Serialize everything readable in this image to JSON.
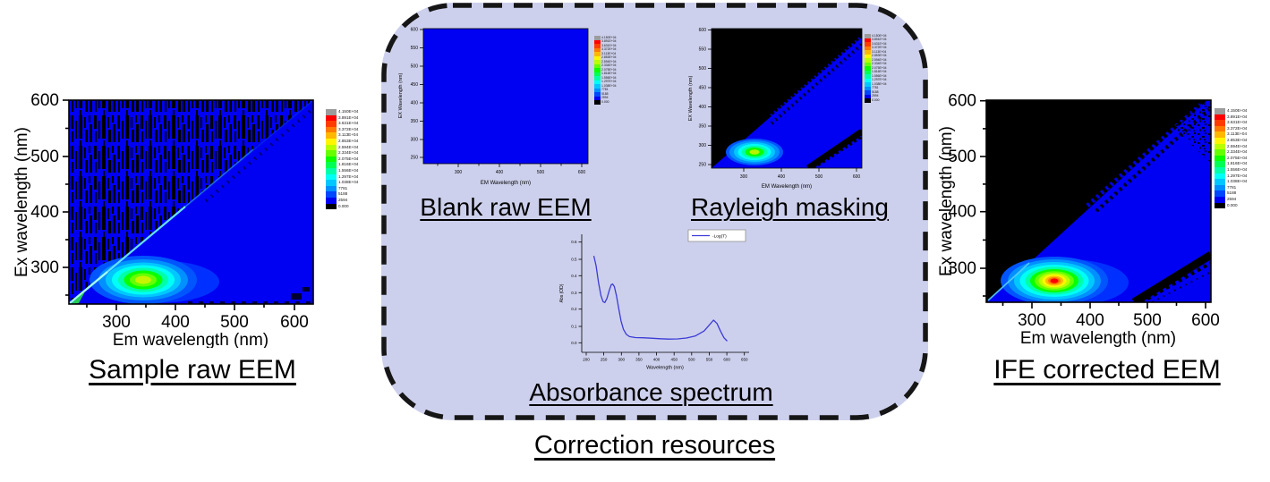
{
  "colors": {
    "box_bg": "#cdd0ec",
    "plot_blue": "#0000f2",
    "mask_black": "#000000",
    "curve_blue": "#3b3bd6"
  },
  "box_label": "Correction resources",
  "panels": {
    "sample": {
      "title": "Sample raw EEM",
      "xlabel": "Em wavelength (nm)",
      "ylabel": "Ex wavelength (nm)",
      "xticks": [
        "300",
        "400",
        "500",
        "600"
      ],
      "yticks": [
        "600",
        "500",
        "400",
        "300"
      ]
    },
    "blank": {
      "title": "Blank raw EEM",
      "xlabel": "EM Wavelength (nm)",
      "ylabel": "EX Wavelength (nm)",
      "xticks": [
        "300",
        "400",
        "500",
        "600"
      ],
      "yticks": [
        "600",
        "550",
        "500",
        "450",
        "400",
        "350",
        "300",
        "250"
      ]
    },
    "rayleigh": {
      "title": "Rayleigh masking",
      "xlabel": "EM Wavelength (nm)",
      "ylabel": "EX Wavelength (nm)",
      "xticks": [
        "300",
        "400",
        "500",
        "600"
      ],
      "yticks": [
        "600",
        "550",
        "500",
        "450",
        "400",
        "350",
        "300",
        "250"
      ]
    },
    "absorbance": {
      "title": "Absorbance spectrum",
      "xlabel": "Wavelength (nm)",
      "ylabel": "Abs (OD)",
      "legend": "-Log(T)",
      "xticks": [
        "200",
        "250",
        "300",
        "350",
        "400",
        "450",
        "500",
        "550",
        "600",
        "650"
      ],
      "yticks": [
        "0.6",
        "0.5",
        "0.4",
        "0.3",
        "0.2",
        "0.1",
        "0.0"
      ]
    },
    "ife": {
      "title": "IFE corrected EEM",
      "xlabel": "Em wavelength (nm)",
      "ylabel": "Ex wavelength (nm)",
      "xticks": [
        "300",
        "400",
        "500",
        "600"
      ],
      "yticks": [
        "600",
        "500",
        "400",
        "300"
      ]
    }
  },
  "colorbar": {
    "levels": [
      {
        "color": "#9c9c9c",
        "label": "4.150E+04"
      },
      {
        "color": "#ff0000",
        "label": "3.891E+04"
      },
      {
        "color": "#ff3c00",
        "label": "3.631E+04"
      },
      {
        "color": "#ff7a00",
        "label": "3.372E+04"
      },
      {
        "color": "#ffb800",
        "label": "3.113E+04"
      },
      {
        "color": "#fff600",
        "label": "2.853E+04"
      },
      {
        "color": "#b8ff00",
        "label": "2.594E+04"
      },
      {
        "color": "#66ff00",
        "label": "2.334E+04"
      },
      {
        "color": "#0aff00",
        "label": "2.075E+04"
      },
      {
        "color": "#00ff55",
        "label": "1.816E+04"
      },
      {
        "color": "#00ffa8",
        "label": "1.556E+04"
      },
      {
        "color": "#00fff6",
        "label": "1.297E+04"
      },
      {
        "color": "#00c8ff",
        "label": "1.038E+04"
      },
      {
        "color": "#0090ff",
        "label": "7781"
      },
      {
        "color": "#0048ff",
        "label": "5188"
      },
      {
        "color": "#0000f2",
        "label": "2594"
      },
      {
        "color": "#000000",
        "label": "0.000"
      }
    ]
  },
  "chart_data": [
    {
      "id": "sample_raw_eem",
      "type": "heatmap",
      "title": "Sample raw EEM",
      "xlabel": "Em wavelength (nm)",
      "ylabel": "Ex wavelength (nm)",
      "x_range_nm": [
        215,
        615
      ],
      "y_range_nm": [
        230,
        600
      ],
      "intensity_levels": [
        41500,
        38910,
        36310,
        33720,
        31130,
        28530,
        25940,
        23340,
        20750,
        18160,
        15560,
        12970,
        10380,
        7781,
        5188,
        2594,
        0
      ],
      "peak": {
        "em_nm": 335,
        "ex_nm": 272,
        "intensity": 26000,
        "appearance": "yellow-green core with green/cyan/blue rings"
      },
      "features": [
        "random black detector-noise streaks above the Rayleigh diagonal (region Em < Ex)",
        "bright cyan first-order Rayleigh scatter line along Em = Ex, strongest near 230-330 nm",
        "uniform blue baseline (~2594 counts) below the diagonal"
      ]
    },
    {
      "id": "blank_raw_eem",
      "type": "heatmap",
      "title": "Blank raw EEM",
      "xlabel": "EM Wavelength (nm)",
      "ylabel": "EX Wavelength (nm)",
      "x_range_nm": [
        215,
        615
      ],
      "y_range_nm": [
        250,
        600
      ],
      "intensity_levels": [
        41500,
        38910,
        36310,
        33720,
        31130,
        28530,
        25940,
        23340,
        20750,
        18160,
        15560,
        12970,
        10380,
        7781,
        5188,
        2594,
        0
      ],
      "uniform_value": 2594,
      "features": [
        "entire map uniform blue (low constant background, no fluorescence)"
      ]
    },
    {
      "id": "rayleigh_masking",
      "type": "heatmap",
      "title": "Rayleigh masking",
      "xlabel": "EM Wavelength (nm)",
      "ylabel": "EX Wavelength (nm)",
      "x_range_nm": [
        215,
        615
      ],
      "y_range_nm": [
        250,
        600
      ],
      "intensity_levels": [
        41500,
        38910,
        36310,
        33720,
        31130,
        28530,
        25940,
        23340,
        20750,
        18160,
        15560,
        12970,
        10380,
        7781,
        5188,
        2594,
        0
      ],
      "peak": {
        "em_nm": 330,
        "ex_nm": 275,
        "intensity": 24000,
        "appearance": "green core"
      },
      "features": [
        "region above first-order Rayleigh line (Em <= Ex) masked to 0 (black triangle)",
        "second-order Rayleigh band masked as black diagonal stripe in lower-right corner",
        "blue baseline retained below the diagonal"
      ]
    },
    {
      "id": "absorbance_spectrum",
      "type": "line",
      "title": "Absorbance spectrum",
      "xlabel": "Wavelength (nm)",
      "ylabel": "Abs (OD)",
      "legend": [
        "-Log(T)"
      ],
      "xlim": [
        200,
        650
      ],
      "ylim": [
        0.0,
        0.6
      ],
      "x": [
        222,
        228,
        235,
        242,
        248,
        253,
        259,
        266,
        271,
        275,
        280,
        286,
        292,
        299,
        306,
        314,
        323,
        340,
        360,
        385,
        410,
        435,
        460,
        485,
        510,
        535,
        552,
        562,
        572,
        582,
        592,
        600
      ],
      "y": [
        0.515,
        0.46,
        0.36,
        0.28,
        0.245,
        0.24,
        0.265,
        0.315,
        0.345,
        0.35,
        0.335,
        0.28,
        0.21,
        0.13,
        0.08,
        0.05,
        0.037,
        0.031,
        0.03,
        0.027,
        0.024,
        0.022,
        0.023,
        0.028,
        0.04,
        0.07,
        0.11,
        0.135,
        0.115,
        0.07,
        0.03,
        0.012
      ]
    },
    {
      "id": "ife_corrected_eem",
      "type": "heatmap",
      "title": "IFE corrected EEM",
      "xlabel": "Em wavelength (nm)",
      "ylabel": "Ex wavelength (nm)",
      "x_range_nm": [
        215,
        615
      ],
      "y_range_nm": [
        230,
        600
      ],
      "intensity_levels": [
        41500,
        38910,
        36310,
        33720,
        31130,
        28530,
        25940,
        23340,
        20750,
        18160,
        15560,
        12970,
        10380,
        7781,
        5188,
        2594,
        0
      ],
      "peak": {
        "em_nm": 337,
        "ex_nm": 272,
        "intensity": 41500,
        "appearance": "red core with orange/yellow/green/cyan rings after inner-filter-effect correction"
      },
      "features": [
        "masked black triangle above first-order Rayleigh diagonal with speckled boundary near top-right",
        "black second-order Rayleigh stripe in lower-right corner",
        "blue baseline below the diagonal"
      ]
    }
  ]
}
